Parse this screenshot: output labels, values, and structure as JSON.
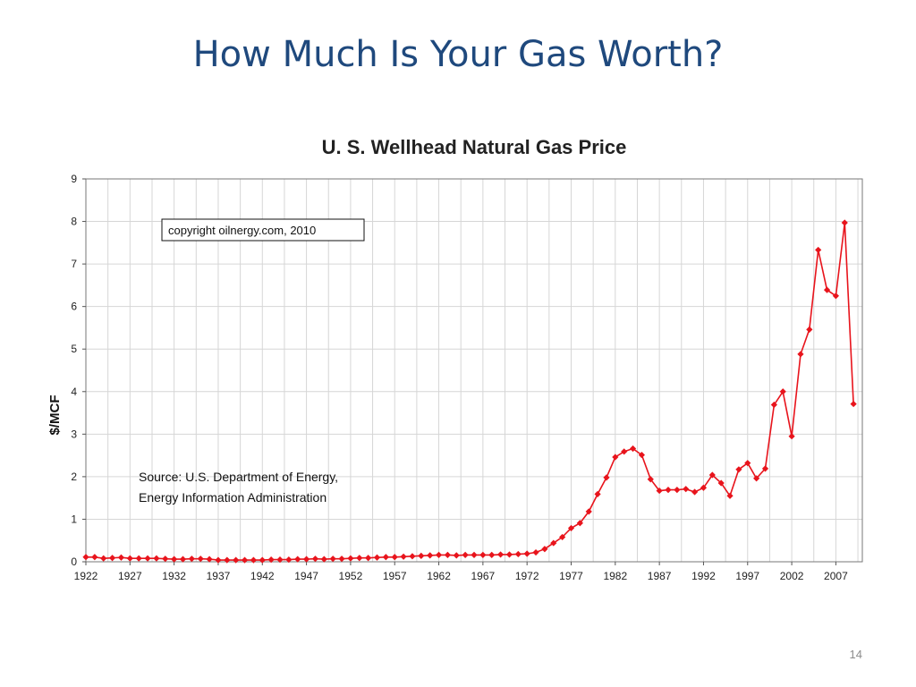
{
  "slide": {
    "title": "How Much Is Your Gas Worth?",
    "slide_number": "14"
  },
  "chart_data": {
    "type": "line",
    "title": "U. S. Wellhead Natural Gas Price",
    "xlabel": "",
    "ylabel": "$/MCF",
    "xlim": [
      1922,
      2010
    ],
    "ylim": [
      0,
      9
    ],
    "grid": true,
    "y_ticks": [
      0,
      1,
      2,
      3,
      4,
      5,
      6,
      7,
      8,
      9
    ],
    "x_ticks": [
      1922,
      1927,
      1932,
      1937,
      1942,
      1947,
      1952,
      1957,
      1962,
      1967,
      1972,
      1977,
      1982,
      1987,
      1992,
      1997,
      2002,
      2007
    ],
    "series": [
      {
        "color": "#e8141c",
        "x": [
          1922,
          1923,
          1924,
          1925,
          1926,
          1927,
          1928,
          1929,
          1930,
          1931,
          1932,
          1933,
          1934,
          1935,
          1936,
          1937,
          1938,
          1939,
          1940,
          1941,
          1942,
          1943,
          1944,
          1945,
          1946,
          1947,
          1948,
          1949,
          1950,
          1951,
          1952,
          1953,
          1954,
          1955,
          1956,
          1957,
          1958,
          1959,
          1960,
          1961,
          1962,
          1963,
          1964,
          1965,
          1966,
          1967,
          1968,
          1969,
          1970,
          1971,
          1972,
          1973,
          1974,
          1975,
          1976,
          1977,
          1978,
          1979,
          1980,
          1981,
          1982,
          1983,
          1984,
          1985,
          1986,
          1987,
          1988,
          1989,
          1990,
          1991,
          1992,
          1993,
          1994,
          1995,
          1996,
          1997,
          1998,
          1999,
          2000,
          2001,
          2002,
          2003,
          2004,
          2005,
          2006,
          2007,
          2008,
          2009
        ],
        "y": [
          0.11,
          0.11,
          0.08,
          0.09,
          0.1,
          0.08,
          0.08,
          0.08,
          0.08,
          0.07,
          0.06,
          0.06,
          0.07,
          0.07,
          0.06,
          0.04,
          0.04,
          0.04,
          0.04,
          0.04,
          0.04,
          0.05,
          0.05,
          0.05,
          0.06,
          0.06,
          0.07,
          0.06,
          0.07,
          0.07,
          0.08,
          0.09,
          0.09,
          0.1,
          0.11,
          0.11,
          0.12,
          0.13,
          0.14,
          0.15,
          0.16,
          0.16,
          0.15,
          0.16,
          0.16,
          0.16,
          0.16,
          0.17,
          0.17,
          0.18,
          0.19,
          0.22,
          0.3,
          0.44,
          0.58,
          0.79,
          0.91,
          1.18,
          1.59,
          1.98,
          2.46,
          2.59,
          2.66,
          2.51,
          1.94,
          1.67,
          1.69,
          1.69,
          1.71,
          1.64,
          1.74,
          2.04,
          1.85,
          1.55,
          2.17,
          2.32,
          1.96,
          2.19,
          3.69,
          4.0,
          2.95,
          4.88,
          5.46,
          7.33,
          6.39,
          6.25,
          7.97,
          3.71
        ]
      }
    ],
    "annotations": [
      {
        "id": "copyright",
        "text": "copyright oilnergy.com, 2010"
      },
      {
        "id": "source_line1",
        "text": "Source: U.S. Department of Energy,"
      },
      {
        "id": "source_line2",
        "text": "Energy Information Administration"
      }
    ]
  }
}
